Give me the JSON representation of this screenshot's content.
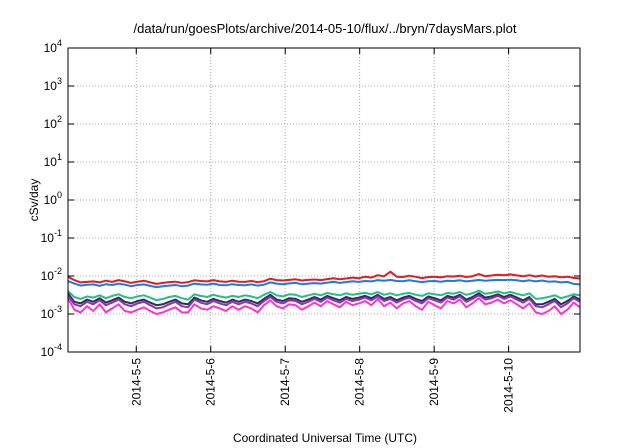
{
  "chart_data": {
    "type": "line",
    "title": "/data/run/goesPlots/archive/2014-05-10/flux/../bryn/7daysMars.plot",
    "xlabel": "Coordinated Universal Time (UTC)",
    "ylabel": "cSv/day",
    "yscale": "log",
    "ylim": [
      0.0001,
      10000
    ],
    "yticks": [
      {
        "base": "10",
        "exp": "-4"
      },
      {
        "base": "10",
        "exp": "-3"
      },
      {
        "base": "10",
        "exp": "-2"
      },
      {
        "base": "10",
        "exp": "-1"
      },
      {
        "base": "10",
        "exp": "0"
      },
      {
        "base": "10",
        "exp": "1"
      },
      {
        "base": "10",
        "exp": "2"
      },
      {
        "base": "10",
        "exp": "3"
      },
      {
        "base": "10",
        "exp": "4"
      }
    ],
    "xlim": [
      "2014-05-04T02:00",
      "2014-05-10T23:00"
    ],
    "xticks": [
      "2014-5-5",
      "2014-5-6",
      "2014-5-7",
      "2014-5-8",
      "2014-5-9",
      "2014-5-10"
    ],
    "grid": true,
    "series": [
      {
        "color": "#e41a1c",
        "values": [
          0.0095,
          0.0078,
          0.0068,
          0.007,
          0.0072,
          0.0068,
          0.0075,
          0.007,
          0.0078,
          0.0072,
          0.0066,
          0.0071,
          0.0075,
          0.0068,
          0.0062,
          0.0066,
          0.0069,
          0.0071,
          0.0066,
          0.0069,
          0.0077,
          0.0074,
          0.0072,
          0.0078,
          0.0072,
          0.007,
          0.0075,
          0.0071,
          0.007,
          0.0074,
          0.0069,
          0.0073,
          0.0085,
          0.0078,
          0.0076,
          0.0079,
          0.0082,
          0.0076,
          0.0079,
          0.0081,
          0.0078,
          0.0083,
          0.0087,
          0.0082,
          0.0086,
          0.0091,
          0.0087,
          0.0096,
          0.0091,
          0.0105,
          0.0098,
          0.013,
          0.0096,
          0.0094,
          0.0102,
          0.0095,
          0.0088,
          0.0094,
          0.0096,
          0.0092,
          0.0099,
          0.0097,
          0.0102,
          0.0094,
          0.0099,
          0.0112,
          0.0099,
          0.0103,
          0.0108,
          0.0105,
          0.011,
          0.0104,
          0.0098,
          0.0105,
          0.0097,
          0.0103,
          0.0096,
          0.0098,
          0.0093,
          0.0096,
          0.0089,
          0.0086
        ]
      },
      {
        "color": "#1f78e8",
        "values": [
          0.0074,
          0.0063,
          0.0056,
          0.0059,
          0.006,
          0.0055,
          0.0061,
          0.0058,
          0.0063,
          0.0059,
          0.0054,
          0.0058,
          0.006,
          0.0055,
          0.0051,
          0.0054,
          0.0056,
          0.0058,
          0.0054,
          0.0056,
          0.0063,
          0.006,
          0.0059,
          0.0063,
          0.0058,
          0.0057,
          0.0061,
          0.0058,
          0.0057,
          0.006,
          0.0056,
          0.0059,
          0.0068,
          0.0063,
          0.0061,
          0.0064,
          0.0066,
          0.0061,
          0.0063,
          0.0065,
          0.0063,
          0.0067,
          0.007,
          0.0066,
          0.0069,
          0.0073,
          0.007,
          0.0074,
          0.0072,
          0.0078,
          0.0075,
          0.0079,
          0.0074,
          0.0073,
          0.0077,
          0.0073,
          0.0069,
          0.0073,
          0.0074,
          0.0071,
          0.0075,
          0.0074,
          0.0077,
          0.0072,
          0.0075,
          0.0079,
          0.0075,
          0.0077,
          0.0079,
          0.0078,
          0.008,
          0.0077,
          0.0073,
          0.0077,
          0.0072,
          0.0076,
          0.0071,
          0.0072,
          0.0068,
          0.007,
          0.0062,
          0.006
        ]
      },
      {
        "color": "#1fc08a",
        "values": [
          0.004,
          0.0028,
          0.0025,
          0.0029,
          0.0027,
          0.0031,
          0.0026,
          0.003,
          0.0033,
          0.0028,
          0.0026,
          0.0029,
          0.0031,
          0.0027,
          0.0023,
          0.0025,
          0.0028,
          0.003,
          0.0026,
          0.0024,
          0.0033,
          0.003,
          0.0028,
          0.0032,
          0.0029,
          0.0027,
          0.003,
          0.0028,
          0.0031,
          0.0029,
          0.0026,
          0.0032,
          0.0038,
          0.0031,
          0.0029,
          0.0033,
          0.0032,
          0.0028,
          0.0031,
          0.0034,
          0.0031,
          0.0036,
          0.0033,
          0.0031,
          0.0035,
          0.0032,
          0.0034,
          0.0036,
          0.0033,
          0.0038,
          0.0032,
          0.0035,
          0.0031,
          0.0034,
          0.0036,
          0.0032,
          0.003,
          0.0035,
          0.0033,
          0.0031,
          0.0036,
          0.0034,
          0.0038,
          0.0032,
          0.0035,
          0.0041,
          0.0034,
          0.0036,
          0.0039,
          0.0035,
          0.0038,
          0.0034,
          0.0031,
          0.0035,
          0.0025,
          0.0026,
          0.0028,
          0.0031,
          0.0026,
          0.0029,
          0.0033,
          0.0031
        ]
      },
      {
        "color": "#333333",
        "values": [
          0.0035,
          0.0021,
          0.0019,
          0.0024,
          0.0021,
          0.0026,
          0.002,
          0.0023,
          0.0027,
          0.0021,
          0.0019,
          0.0022,
          0.0024,
          0.002,
          0.0017,
          0.0018,
          0.0021,
          0.0024,
          0.0019,
          0.0018,
          0.0027,
          0.0023,
          0.0021,
          0.0025,
          0.0022,
          0.002,
          0.0024,
          0.0021,
          0.0024,
          0.0022,
          0.0019,
          0.0025,
          0.0032,
          0.0024,
          0.0022,
          0.0026,
          0.0025,
          0.0021,
          0.0024,
          0.0028,
          0.0024,
          0.003,
          0.0026,
          0.0023,
          0.0028,
          0.0025,
          0.0027,
          0.003,
          0.0026,
          0.0032,
          0.0025,
          0.0028,
          0.0023,
          0.0027,
          0.003,
          0.0025,
          0.0022,
          0.0029,
          0.0026,
          0.0023,
          0.003,
          0.0027,
          0.0032,
          0.0024,
          0.0028,
          0.0035,
          0.0027,
          0.0029,
          0.0033,
          0.0028,
          0.0032,
          0.0027,
          0.0023,
          0.0028,
          0.0018,
          0.0018,
          0.0021,
          0.0025,
          0.0018,
          0.0022,
          0.0029,
          0.0024
        ]
      },
      {
        "color": "#8a2be2",
        "values": [
          0.0031,
          0.0018,
          0.0016,
          0.0021,
          0.0018,
          0.0023,
          0.0017,
          0.002,
          0.0024,
          0.0018,
          0.0016,
          0.0019,
          0.0021,
          0.0017,
          0.0014,
          0.0015,
          0.0018,
          0.0021,
          0.0016,
          0.0015,
          0.0024,
          0.002,
          0.0018,
          0.0022,
          0.0019,
          0.0017,
          0.0021,
          0.0018,
          0.0021,
          0.0019,
          0.0016,
          0.0022,
          0.0028,
          0.0021,
          0.0019,
          0.0023,
          0.0022,
          0.0018,
          0.0021,
          0.0025,
          0.0021,
          0.0027,
          0.0023,
          0.002,
          0.0025,
          0.0022,
          0.0024,
          0.0027,
          0.0023,
          0.0029,
          0.0022,
          0.0025,
          0.002,
          0.0024,
          0.0027,
          0.0022,
          0.0019,
          0.0026,
          0.0023,
          0.002,
          0.0027,
          0.0024,
          0.0029,
          0.0021,
          0.0025,
          0.0031,
          0.0024,
          0.0026,
          0.003,
          0.0025,
          0.0029,
          0.0024,
          0.002,
          0.0025,
          0.0016,
          0.0015,
          0.0018,
          0.0022,
          0.0015,
          0.0019,
          0.0026,
          0.0021
        ]
      },
      {
        "color": "#ff33cc",
        "values": [
          0.0026,
          0.0013,
          0.0011,
          0.0016,
          0.0012,
          0.0018,
          0.0011,
          0.0014,
          0.0018,
          0.0012,
          0.0011,
          0.0013,
          0.0015,
          0.0012,
          0.001,
          0.0011,
          0.0013,
          0.0015,
          0.0011,
          0.0011,
          0.0018,
          0.0014,
          0.0013,
          0.0016,
          0.0014,
          0.0012,
          0.0016,
          0.0013,
          0.0016,
          0.0014,
          0.0011,
          0.0017,
          0.0023,
          0.0016,
          0.0014,
          0.0018,
          0.0017,
          0.0013,
          0.0016,
          0.002,
          0.0016,
          0.0022,
          0.0018,
          0.0015,
          0.0021,
          0.0017,
          0.0019,
          0.0022,
          0.0017,
          0.0025,
          0.0016,
          0.002,
          0.0014,
          0.0019,
          0.0022,
          0.0016,
          0.0013,
          0.0021,
          0.0017,
          0.0014,
          0.0022,
          0.0019,
          0.0024,
          0.0015,
          0.0019,
          0.0026,
          0.0018,
          0.002,
          0.0024,
          0.0019,
          0.0023,
          0.0018,
          0.0014,
          0.0019,
          0.0011,
          0.001,
          0.0012,
          0.0016,
          0.001,
          0.0013,
          0.002,
          0.0015
        ]
      }
    ]
  }
}
